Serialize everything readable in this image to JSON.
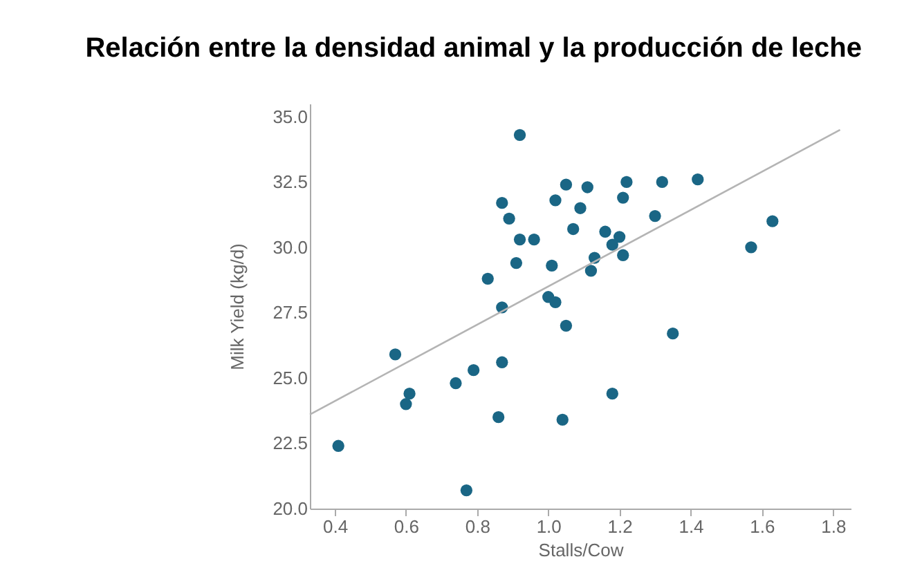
{
  "chart_data": {
    "type": "scatter",
    "title": "Relación entre la densidad animal y la producción de leche",
    "xlabel": "Stalls/Cow",
    "ylabel": "Milk Yield (kg/d)",
    "xlim": [
      0.33,
      1.85
    ],
    "ylim": [
      20,
      35.5
    ],
    "xticks": [
      0.4,
      0.6,
      0.8,
      {
        "value": 1,
        "label": "1.0"
      },
      1.2,
      1.4,
      1.6,
      1.8
    ],
    "yticks": [
      {
        "value": 20,
        "label": "20.0"
      },
      22.5,
      {
        "value": 25,
        "label": "25.0"
      },
      27.5,
      {
        "value": 30,
        "label": "30.0"
      },
      32.5,
      {
        "value": 35,
        "label": "35.0"
      }
    ],
    "grid": false,
    "series": [
      {
        "type": "scatter",
        "marker": "circle",
        "color": "#1a6685",
        "x": [
          0.41,
          0.57,
          0.6,
          0.61,
          0.74,
          0.79,
          0.77,
          0.83,
          0.87,
          0.87,
          0.86,
          0.87,
          0.89,
          0.91,
          0.92,
          0.92,
          0.96,
          1.01,
          1.0,
          1.02,
          1.02,
          1.05,
          1.05,
          1.04,
          1.07,
          1.11,
          1.09,
          1.16,
          1.2,
          1.18,
          1.21,
          1.13,
          1.12,
          1.22,
          1.21,
          1.3,
          1.32,
          1.42,
          1.63,
          1.57,
          1.35,
          1.18
        ],
        "values": [
          22.4,
          25.9,
          24.0,
          24.4,
          24.8,
          25.3,
          20.7,
          28.8,
          27.7,
          25.6,
          23.5,
          31.7,
          31.1,
          29.4,
          30.3,
          34.3,
          30.3,
          29.3,
          28.1,
          27.9,
          31.8,
          32.4,
          27.0,
          23.4,
          30.7,
          32.3,
          31.5,
          30.6,
          30.4,
          30.1,
          29.7,
          29.6,
          29.1,
          32.5,
          31.9,
          31.2,
          32.5,
          32.6,
          31.0,
          30.0,
          26.7,
          24.4
        ]
      },
      {
        "type": "line",
        "color": "#b4b4b4",
        "line_style": "solid",
        "marker": "none",
        "x": [
          0.33,
          1.82
        ],
        "values": [
          23.6,
          34.5
        ]
      }
    ]
  }
}
